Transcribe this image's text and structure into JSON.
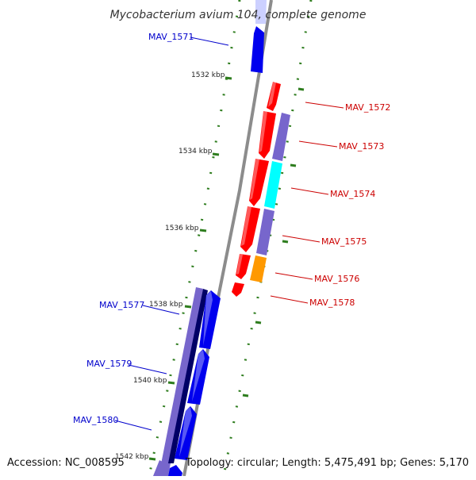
{
  "title": "Mycobacterium avium 104, complete genome",
  "accession": "Accession: NC_008595",
  "summary": "Topology: circular; Length: 5,475,491 bp; Genes: 5,170",
  "colors": {
    "forward_label": "#cc0000",
    "reverse_label": "#0000cc",
    "backbone": "#8c8c8c",
    "ticks": "#2e7d1e",
    "red": "#ff0000",
    "blue": "#0000ee",
    "purple": "#7766cc",
    "navy": "#000066",
    "cyan": "#00ffff",
    "orange": "#ff9900"
  },
  "ticks": [
    {
      "label": "1532 kbp"
    },
    {
      "label": "1534 kbp"
    },
    {
      "label": "1536 kbp"
    },
    {
      "label": "1538 kbp"
    },
    {
      "label": "1540 kbp"
    },
    {
      "label": "1542 kbp"
    }
  ],
  "gene_labels": [
    {
      "name": "MAV_1571",
      "strand": "reverse"
    },
    {
      "name": "MAV_1572",
      "strand": "forward"
    },
    {
      "name": "MAV_1573",
      "strand": "forward"
    },
    {
      "name": "MAV_1574",
      "strand": "forward"
    },
    {
      "name": "MAV_1575",
      "strand": "forward"
    },
    {
      "name": "MAV_1576",
      "strand": "forward"
    },
    {
      "name": "MAV_1577",
      "strand": "reverse"
    },
    {
      "name": "MAV_1578",
      "strand": "forward"
    },
    {
      "name": "MAV_1579",
      "strand": "reverse"
    },
    {
      "name": "MAV_1580",
      "strand": "reverse"
    }
  ]
}
